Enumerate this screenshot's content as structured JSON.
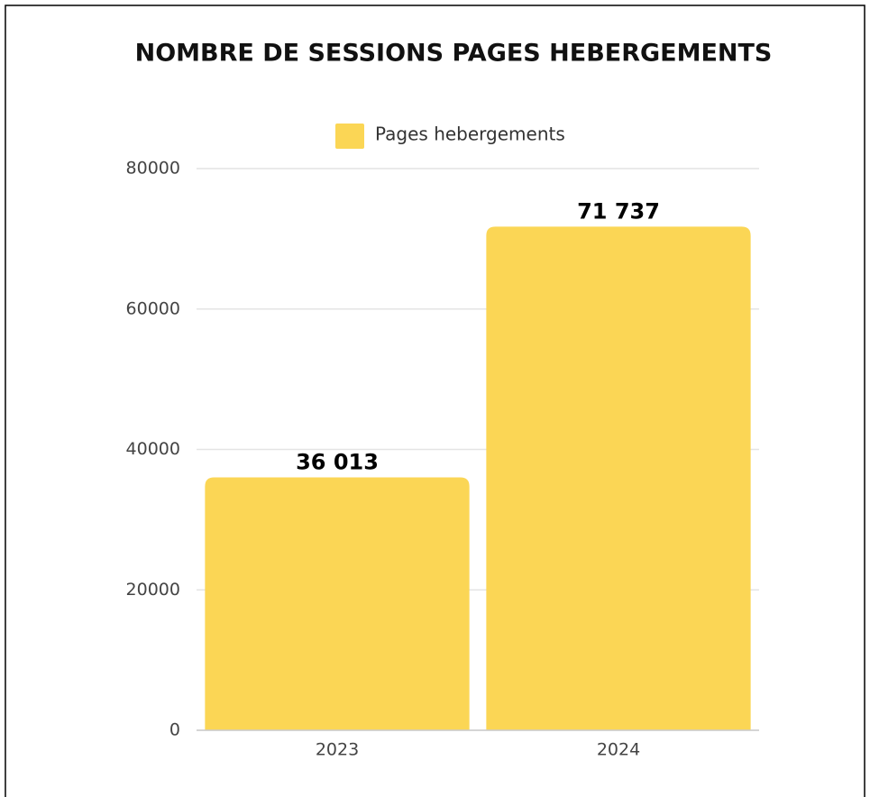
{
  "chart_data": {
    "type": "bar",
    "title": "NOMBRE DE SESSIONS PAGES HEBERGEMENTS",
    "categories": [
      "2023",
      "2024"
    ],
    "series": [
      {
        "name": "Pages hebergements",
        "color": "#fbd655",
        "values": [
          36013,
          71737
        ],
        "value_labels": [
          "36 013",
          "71 737"
        ]
      }
    ],
    "ylim": [
      0,
      80000
    ],
    "yticks": [
      0,
      20000,
      40000,
      60000,
      80000
    ],
    "grid": true,
    "legend": "top"
  }
}
